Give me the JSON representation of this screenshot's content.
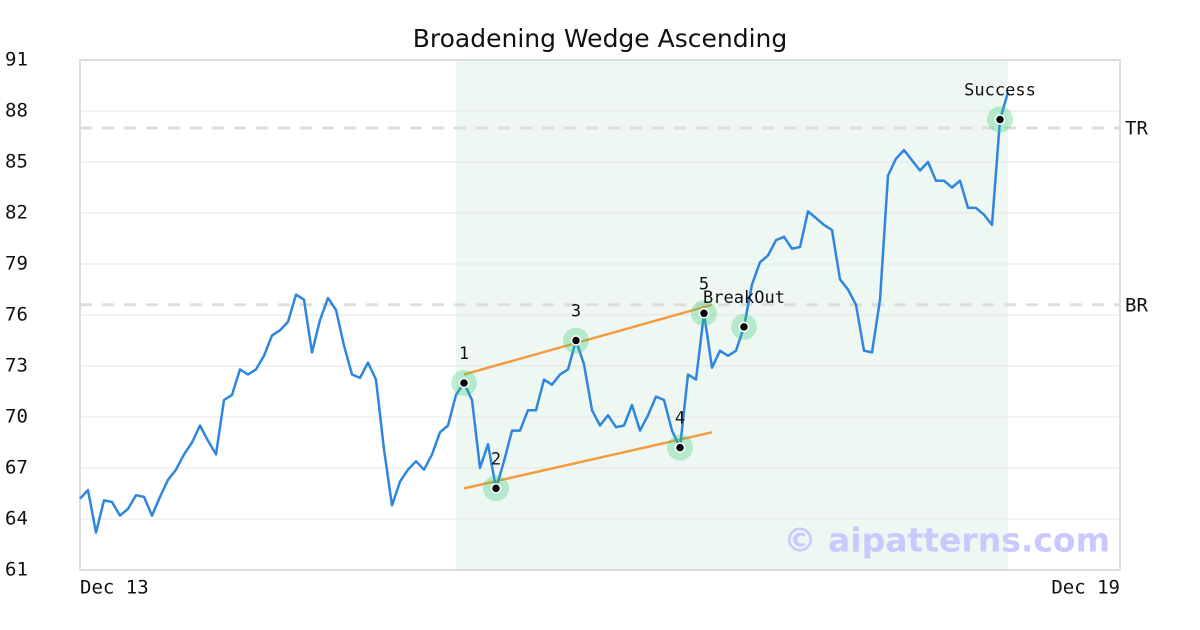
{
  "chart_data": {
    "type": "line",
    "title": "Broadening Wedge Ascending",
    "categories": [
      "Dec 13",
      null,
      null,
      null,
      null,
      null,
      null,
      null,
      null,
      null,
      null,
      null,
      null,
      null,
      null,
      null,
      null,
      null,
      null,
      null,
      null,
      null,
      null,
      null,
      null,
      null,
      null,
      null,
      null,
      null,
      null,
      null,
      null,
      null,
      null,
      null,
      null,
      null,
      null,
      null,
      null,
      null,
      null,
      null,
      null,
      null,
      null,
      null,
      null,
      null,
      null,
      null,
      null,
      null,
      null,
      null,
      null,
      null,
      null,
      null,
      null,
      null,
      null,
      null,
      null,
      null,
      null,
      null,
      null,
      null,
      null,
      null,
      null,
      null,
      null,
      null,
      null,
      null,
      null,
      null,
      null,
      null,
      null,
      null,
      null,
      null,
      null,
      null,
      null,
      null,
      null,
      null,
      null,
      null,
      null,
      null,
      null,
      null,
      null,
      null,
      null,
      null,
      null,
      null,
      null,
      null,
      null,
      null,
      null,
      null,
      null,
      null,
      null,
      null,
      null,
      null,
      null,
      null,
      null,
      null,
      null,
      null,
      null,
      null,
      null,
      null,
      null,
      null,
      null,
      null,
      "Dec 19"
    ],
    "values": [
      65.2,
      65.7,
      63.2,
      65.1,
      65.0,
      64.2,
      64.6,
      65.4,
      65.3,
      64.2,
      65.3,
      66.3,
      66.9,
      67.8,
      68.5,
      69.5,
      68.6,
      67.8,
      71.0,
      71.3,
      72.8,
      72.5,
      72.8,
      73.6,
      74.8,
      75.1,
      75.6,
      77.2,
      76.9,
      73.8,
      75.7,
      77.0,
      76.3,
      74.2,
      72.5,
      72.3,
      73.2,
      72.2,
      68.1,
      64.8,
      66.2,
      66.9,
      67.4,
      66.9,
      67.8,
      69.1,
      69.5,
      71.3,
      72.0,
      71.0,
      67.0,
      68.4,
      65.8,
      67.4,
      69.2,
      69.2,
      70.4,
      70.4,
      72.2,
      71.9,
      72.5,
      72.8,
      74.5,
      73.1,
      70.4,
      69.5,
      70.1,
      69.4,
      69.5,
      70.7,
      69.2,
      70.1,
      71.2,
      71.0,
      69.2,
      68.2,
      72.5,
      72.2,
      76.1,
      72.9,
      73.9,
      73.6,
      73.9,
      75.3,
      77.8,
      79.1,
      79.5,
      80.4,
      80.6,
      79.9,
      80.0,
      82.1,
      81.7,
      81.3,
      81.0,
      78.1,
      77.5,
      76.6,
      73.9,
      73.8,
      76.9,
      84.2,
      85.2,
      85.7,
      85.1,
      84.5,
      85.0,
      83.9,
      83.9,
      83.5,
      83.9,
      82.3,
      82.3,
      81.9,
      81.3,
      87.5,
      89.1,
      null,
      null,
      null,
      null,
      null,
      null,
      null,
      null,
      null,
      null,
      null,
      null,
      null,
      null
    ],
    "color": "#2e86de",
    "ylim": [
      61,
      91
    ],
    "yticks": [
      61,
      64,
      67,
      70,
      73,
      76,
      79,
      82,
      85,
      88,
      91
    ],
    "grid": true,
    "shaded_range": [
      47,
      116
    ],
    "points": [
      {
        "label": "1",
        "x": 48,
        "y": 72.0
      },
      {
        "label": "2",
        "x": 52,
        "y": 65.8
      },
      {
        "label": "3",
        "x": 62,
        "y": 74.5
      },
      {
        "label": "4",
        "x": 75,
        "y": 68.2
      },
      {
        "label": "5",
        "x": 78,
        "y": 76.1
      },
      {
        "label": "BreakOut",
        "x": 83,
        "y": 75.3
      },
      {
        "label": "Success",
        "x": 115,
        "y": 87.5
      }
    ],
    "trend_lines": [
      {
        "x": [
          48,
          79
        ],
        "y": [
          72.5,
          76.6
        ],
        "color": "#f39c44"
      },
      {
        "x": [
          48,
          79
        ],
        "y": [
          65.8,
          69.1
        ],
        "color": "#f39c44"
      }
    ],
    "levels": [
      {
        "label": "TR",
        "value": 87.0
      },
      {
        "label": "BR",
        "value": 76.6
      }
    ],
    "watermark": "© aipatterns.com"
  }
}
